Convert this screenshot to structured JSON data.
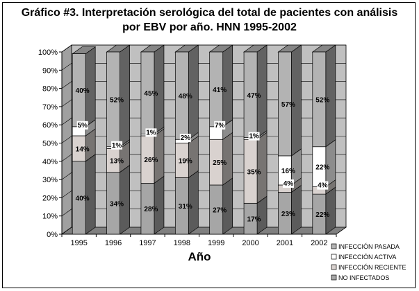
{
  "chart_data": {
    "type": "bar",
    "stacked": true,
    "percent": true,
    "three_d": true,
    "title_line1": "Gráfico #3. Interpretación serológica del total de pacientes con análisis",
    "title_line2": "por EBV por año. HNN 1995-2002",
    "xlabel": "Año",
    "ylabel": "",
    "ylim": [
      0,
      100
    ],
    "yticks": [
      "0%",
      "10%",
      "20%",
      "30%",
      "40%",
      "50%",
      "60%",
      "70%",
      "80%",
      "90%",
      "100%"
    ],
    "categories": [
      "1995",
      "1996",
      "1997",
      "1998",
      "1999",
      "2000",
      "2001",
      "2002"
    ],
    "series": [
      {
        "name": "NO INFECTADOS",
        "color": "#a6a6a6",
        "values": [
          40,
          34,
          28,
          31,
          27,
          17,
          23,
          22
        ],
        "labels": [
          "40%",
          "34%",
          "28%",
          "31%",
          "27%",
          "17%",
          "23%",
          "22%"
        ]
      },
      {
        "name": "INFECCIÓN RECIENTE",
        "color": "#d9d2cf",
        "values": [
          14,
          13,
          26,
          19,
          25,
          35,
          4,
          4
        ],
        "labels": [
          "14%",
          "13%",
          "26%",
          "19%",
          "25%",
          "35%",
          "4%",
          "4%"
        ]
      },
      {
        "name": "INFECCIÓN ACTIVA",
        "color": "#ffffff",
        "values": [
          5,
          1,
          1,
          2,
          7,
          1,
          16,
          22
        ],
        "labels": [
          "5%",
          "1%",
          "1%",
          "2%",
          "7%",
          "1%",
          "16%",
          "22%"
        ]
      },
      {
        "name": "INFECCIÓN PASADA",
        "color": "#b3b3b3",
        "values": [
          40,
          52,
          45,
          48,
          41,
          47,
          57,
          52
        ],
        "labels": [
          "40%",
          "52%",
          "45%",
          "48%",
          "41%",
          "47%",
          "57%",
          "52%"
        ]
      }
    ],
    "legend_order": [
      "INFECCIÓN PASADA",
      "INFECCIÓN ACTIVA",
      "INFECCIÓN RECIENTE",
      "NO INFECTADOS"
    ],
    "legend_position": "bottom-right",
    "wall_color": "#c0c0c0",
    "floor_color": "#808080",
    "grid": true
  }
}
